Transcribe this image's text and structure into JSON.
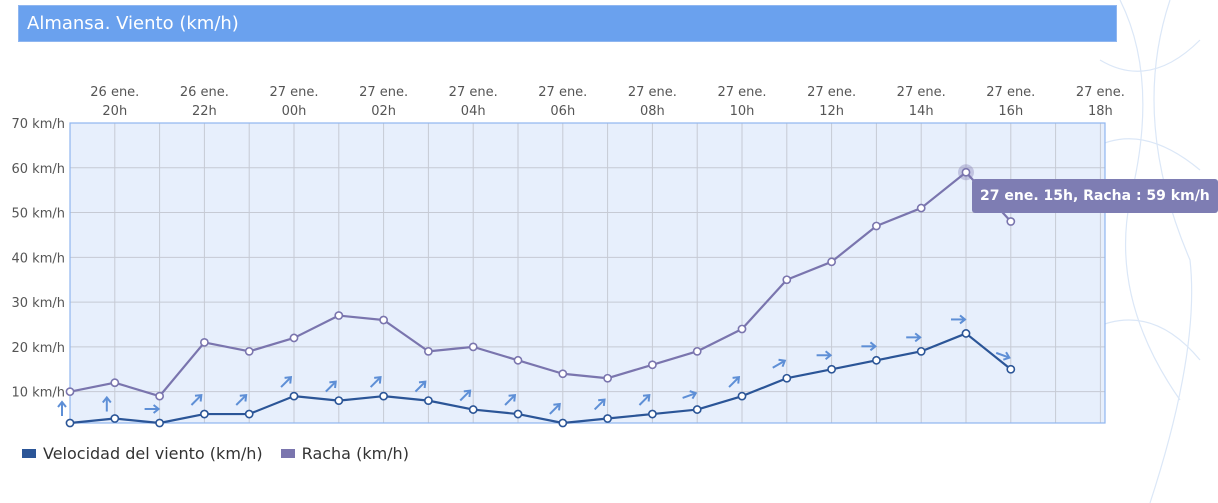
{
  "title": "Almansa. Viento (km/h)",
  "colors": {
    "title_bg": "#6aa1ee",
    "plot_bg": "#e7effc",
    "wind": "#2b5597",
    "gust": "#7a75ae",
    "arrow": "#5e8fd6",
    "grid": "#c6cad4",
    "plot_border": "#8fb6f0"
  },
  "tooltip": {
    "text": "27 ene. 15h, Racha : 59 km/h"
  },
  "chart_data": {
    "type": "line",
    "title": "Almansa. Viento (km/h)",
    "x_top_labels": [
      [
        "26 ene.",
        "20h"
      ],
      [
        "26 ene.",
        "22h"
      ],
      [
        "27 ene.",
        "00h"
      ],
      [
        "27 ene.",
        "02h"
      ],
      [
        "27 ene.",
        "04h"
      ],
      [
        "27 ene.",
        "06h"
      ],
      [
        "27 ene.",
        "08h"
      ],
      [
        "27 ene.",
        "10h"
      ],
      [
        "27 ene.",
        "12h"
      ],
      [
        "27 ene.",
        "14h"
      ],
      [
        "27 ene.",
        "16h"
      ],
      [
        "27 ene.",
        "18h"
      ]
    ],
    "y_ticks": [
      "70 km/h",
      "60 km/h",
      "50 km/h",
      "40 km/h",
      "30 km/h",
      "20 km/h",
      "10 km/h"
    ],
    "ylim": [
      3,
      70
    ],
    "x_hours": [
      "26 ene. 19h",
      "26 ene. 20h",
      "26 ene. 21h",
      "26 ene. 22h",
      "26 ene. 23h",
      "27 ene. 00h",
      "27 ene. 01h",
      "27 ene. 02h",
      "27 ene. 03h",
      "27 ene. 04h",
      "27 ene. 05h",
      "27 ene. 06h",
      "27 ene. 07h",
      "27 ene. 08h",
      "27 ene. 09h",
      "27 ene. 10h",
      "27 ene. 11h",
      "27 ene. 12h",
      "27 ene. 13h",
      "27 ene. 14h",
      "27 ene. 15h",
      "27 ene. 16h"
    ],
    "series": [
      {
        "name": "Velocidad del viento (km/h)",
        "values": [
          3,
          4,
          3,
          5,
          5,
          9,
          8,
          9,
          8,
          6,
          5,
          3,
          4,
          5,
          6,
          9,
          13,
          15,
          17,
          19,
          23,
          15
        ],
        "arrow_direction_deg": [
          90,
          90,
          0,
          45,
          45,
          45,
          45,
          45,
          45,
          45,
          45,
          45,
          45,
          45,
          20,
          45,
          30,
          0,
          0,
          0,
          0,
          -20
        ]
      },
      {
        "name": "Racha (km/h)",
        "values": [
          10,
          12,
          9,
          21,
          19,
          22,
          27,
          26,
          19,
          20,
          17,
          14,
          13,
          16,
          19,
          24,
          35,
          39,
          47,
          51,
          59,
          48
        ]
      }
    ],
    "highlighted_point": {
      "series": "Racha (km/h)",
      "x": "27 ene. 15h",
      "y": 59
    },
    "grid": true,
    "legend": "bottom-left"
  }
}
